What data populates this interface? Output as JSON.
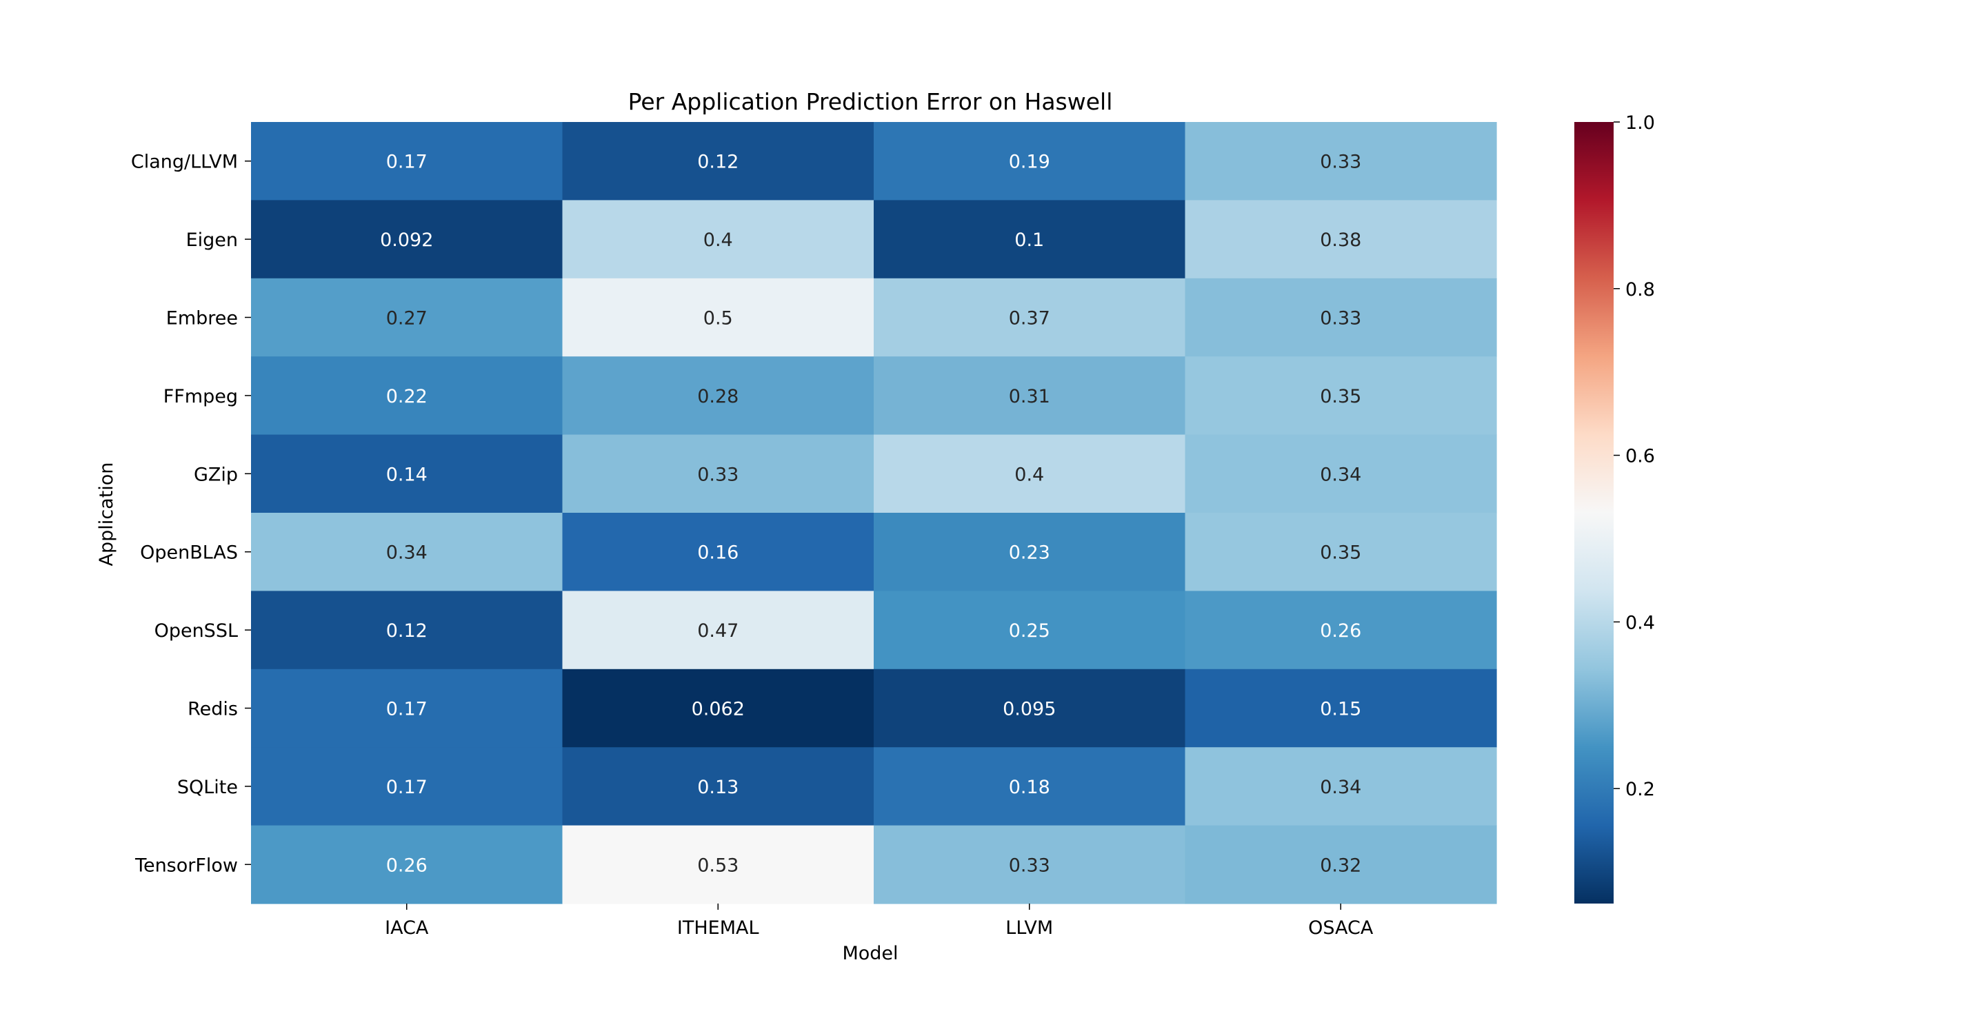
{
  "chart_data": {
    "type": "heatmap",
    "title": "Per Application Prediction Error on Haswell",
    "xlabel": "Model",
    "ylabel": "Application",
    "x_categories": [
      "IACA",
      "ITHEMAL",
      "LLVM",
      "OSACA"
    ],
    "y_categories": [
      "Clang/LLVM",
      "Eigen",
      "Embree",
      "FFmpeg",
      "GZip",
      "OpenBLAS",
      "OpenSSL",
      "Redis",
      "SQLite",
      "TensorFlow"
    ],
    "values": [
      [
        0.17,
        0.12,
        0.19,
        0.33
      ],
      [
        0.092,
        0.4,
        0.1,
        0.38
      ],
      [
        0.27,
        0.5,
        0.37,
        0.33
      ],
      [
        0.22,
        0.28,
        0.31,
        0.35
      ],
      [
        0.14,
        0.33,
        0.4,
        0.34
      ],
      [
        0.34,
        0.16,
        0.23,
        0.35
      ],
      [
        0.12,
        0.47,
        0.25,
        0.26
      ],
      [
        0.17,
        0.062,
        0.095,
        0.15
      ],
      [
        0.17,
        0.13,
        0.18,
        0.34
      ],
      [
        0.26,
        0.53,
        0.33,
        0.32
      ]
    ],
    "value_labels": [
      [
        "0.17",
        "0.12",
        "0.19",
        "0.33"
      ],
      [
        "0.092",
        "0.4",
        "0.1",
        "0.38"
      ],
      [
        "0.27",
        "0.5",
        "0.37",
        "0.33"
      ],
      [
        "0.22",
        "0.28",
        "0.31",
        "0.35"
      ],
      [
        "0.14",
        "0.33",
        "0.4",
        "0.34"
      ],
      [
        "0.34",
        "0.16",
        "0.23",
        "0.35"
      ],
      [
        "0.12",
        "0.47",
        "0.25",
        "0.26"
      ],
      [
        "0.17",
        "0.062",
        "0.095",
        "0.15"
      ],
      [
        "0.17",
        "0.13",
        "0.18",
        "0.34"
      ],
      [
        "0.26",
        "0.53",
        "0.33",
        "0.32"
      ]
    ],
    "colormap": "RdBu_r",
    "vmin": 0.062,
    "vmax": 1.0,
    "colorbar_ticks": [
      0.2,
      0.4,
      0.6,
      0.8,
      1.0
    ],
    "colorbar_tick_labels": [
      "0.2",
      "0.4",
      "0.6",
      "0.8",
      "1.0"
    ],
    "colorbar_stops": [
      "#053061",
      "#2166ac",
      "#4393c3",
      "#92c5de",
      "#d1e5f0",
      "#f7f7f7",
      "#fddbc7",
      "#f4a582",
      "#d6604d",
      "#b2182b",
      "#67001f"
    ],
    "colorbar_position": "right",
    "grid": false
  }
}
